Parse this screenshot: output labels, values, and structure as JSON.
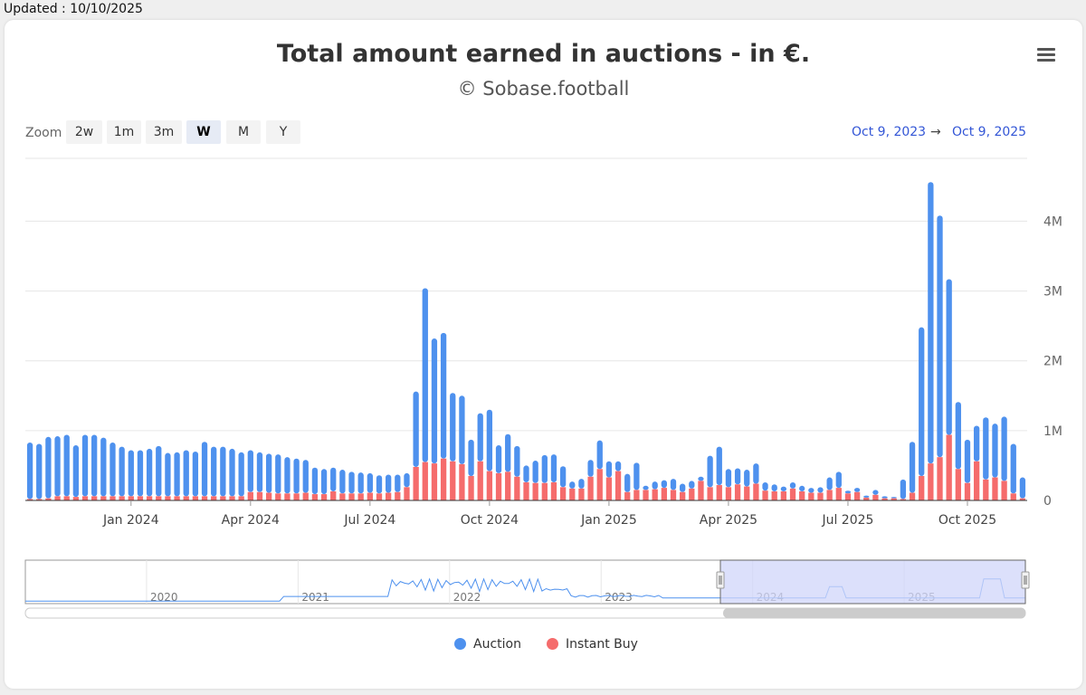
{
  "updated_text": "Updated : 10/10/2025",
  "toolbar": {
    "zoom_label": "Zoom",
    "zoom_buttons": [
      "2w",
      "1m",
      "3m",
      "W",
      "M",
      "Y"
    ],
    "active_zoom": "W",
    "range_from": "Oct 9, 2023",
    "range_arrow": "→",
    "range_to": "Oct 9, 2025"
  },
  "colors": {
    "auction": "#4e91ee",
    "instant": "#f56c6c",
    "nav_fill": "#d0d5fa",
    "nav_line": "#4e91ee"
  },
  "chart_data": {
    "type": "bar",
    "stacked": true,
    "title": "Total amount earned in auctions - in €.",
    "subtitle": "© Sobase.football",
    "y_ticks": [
      "0",
      "1M",
      "2M",
      "3M",
      "4M"
    ],
    "y_tick_values": [
      0,
      1000000,
      2000000,
      3000000,
      4000000
    ],
    "ylim": [
      0,
      4900000
    ],
    "x_ticks": [
      "Jan 2024",
      "Apr 2024",
      "Jul 2024",
      "Oct 2024",
      "Jan 2025",
      "Apr 2025",
      "Jul 2025",
      "Oct 2025"
    ],
    "x_tick_week_index": [
      11.5,
      24.5,
      37.5,
      50.5,
      63.5,
      76.5,
      89.5,
      102.5
    ],
    "grid": true,
    "legend_position": "bottom-center",
    "series": [
      {
        "name": "Auction",
        "values": [
          810000,
          790000,
          880000,
          860000,
          880000,
          740000,
          880000,
          880000,
          840000,
          770000,
          710000,
          660000,
          660000,
          680000,
          720000,
          620000,
          630000,
          660000,
          640000,
          780000,
          710000,
          710000,
          680000,
          630000,
          600000,
          570000,
          560000,
          560000,
          520000,
          500000,
          470000,
          380000,
          360000,
          340000,
          340000,
          310000,
          300000,
          280000,
          260000,
          260000,
          250000,
          200000,
          1080000,
          2490000,
          1790000,
          1800000,
          980000,
          980000,
          520000,
          690000,
          880000,
          400000,
          540000,
          440000,
          240000,
          320000,
          400000,
          400000,
          300000,
          100000,
          140000,
          240000,
          410000,
          230000,
          140000,
          260000,
          390000,
          60000,
          110000,
          110000,
          160000,
          120000,
          110000,
          60000,
          450000,
          550000,
          260000,
          230000,
          240000,
          290000,
          120000,
          100000,
          70000,
          90000,
          80000,
          70000,
          80000,
          180000,
          230000,
          40000,
          60000,
          30000,
          70000,
          30000,
          20000,
          280000,
          730000,
          2130000,
          4030000,
          3460000,
          2230000,
          960000,
          620000,
          510000,
          890000,
          770000,
          920000,
          710000,
          300000
        ],
        "color": "#4e91ee"
      },
      {
        "name": "Instant Buy",
        "values": [
          20000,
          20000,
          30000,
          60000,
          60000,
          50000,
          60000,
          60000,
          60000,
          60000,
          60000,
          60000,
          60000,
          60000,
          60000,
          60000,
          60000,
          60000,
          60000,
          60000,
          60000,
          60000,
          60000,
          60000,
          120000,
          120000,
          110000,
          100000,
          100000,
          100000,
          110000,
          90000,
          90000,
          130000,
          100000,
          100000,
          100000,
          110000,
          100000,
          110000,
          120000,
          190000,
          480000,
          550000,
          530000,
          600000,
          560000,
          520000,
          350000,
          560000,
          420000,
          390000,
          410000,
          340000,
          260000,
          250000,
          250000,
          260000,
          190000,
          170000,
          170000,
          340000,
          450000,
          330000,
          420000,
          120000,
          150000,
          150000,
          160000,
          180000,
          150000,
          120000,
          170000,
          280000,
          190000,
          220000,
          190000,
          230000,
          200000,
          240000,
          140000,
          130000,
          130000,
          170000,
          130000,
          110000,
          110000,
          150000,
          180000,
          100000,
          120000,
          40000,
          80000,
          30000,
          30000,
          20000,
          110000,
          350000,
          530000,
          620000,
          940000,
          450000,
          250000,
          560000,
          300000,
          330000,
          280000,
          100000,
          30000
        ],
        "color": "#f56c6c"
      }
    ],
    "navigator": {
      "x_ticks": [
        "2020",
        "2021",
        "2022",
        "2023",
        "2024",
        "2025"
      ],
      "years_span": [
        2019.2,
        2025.8
      ],
      "selected_range": [
        "Oct 9, 2023",
        "Oct 9, 2025"
      ]
    }
  },
  "legend": [
    {
      "label": "Auction",
      "color": "#4e91ee"
    },
    {
      "label": "Instant Buy",
      "color": "#f56c6c"
    }
  ]
}
